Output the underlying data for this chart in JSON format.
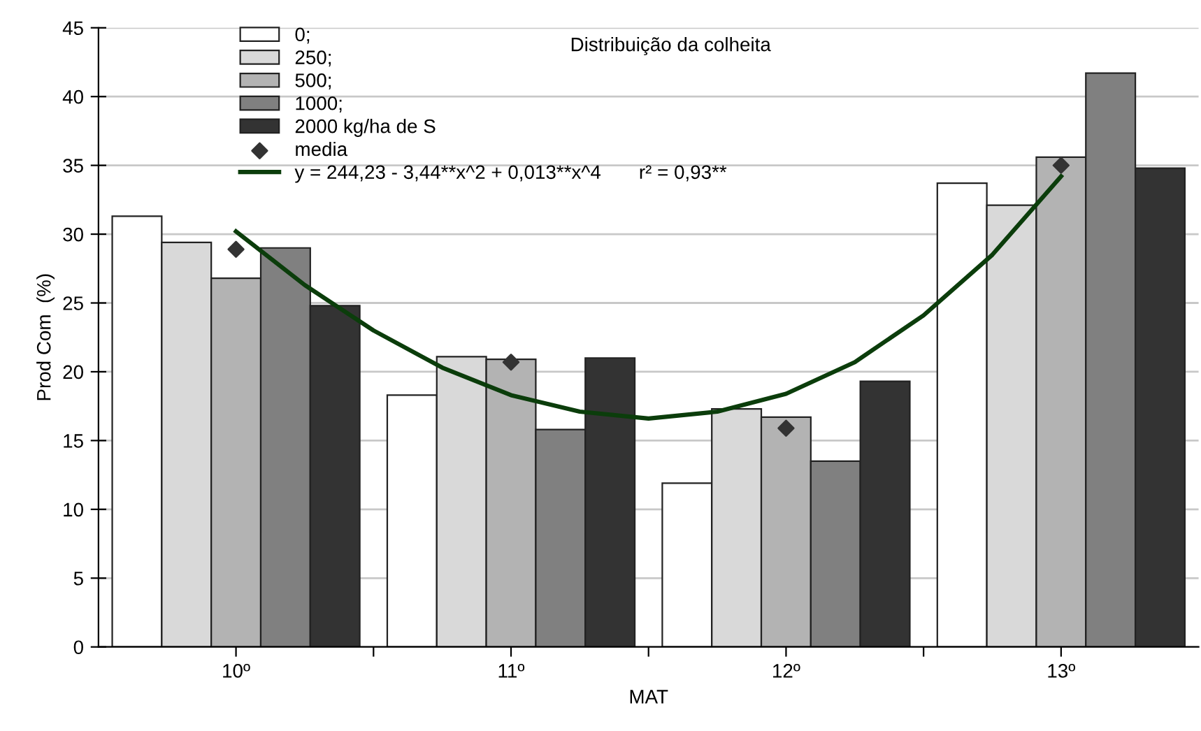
{
  "chart_data": {
    "type": "bar",
    "title": "Distribuição da colheita",
    "xlabel": "MAT",
    "ylabel": "Prod Com  (%)",
    "x": [
      10,
      11,
      12,
      13
    ],
    "xlim": [
      9.5,
      13.5
    ],
    "xticks": [
      {
        "value": 10,
        "label": "10º"
      },
      {
        "value": 10.5,
        "label": null
      },
      {
        "value": 11,
        "label": "11º"
      },
      {
        "value": 11.5,
        "label": null
      },
      {
        "value": 12,
        "label": "12º"
      },
      {
        "value": 12.5,
        "label": null
      },
      {
        "value": 13,
        "label": "13º"
      }
    ],
    "ylim": [
      0,
      45
    ],
    "yticks": [
      0,
      5,
      10,
      15,
      20,
      25,
      30,
      35,
      40,
      45
    ],
    "grid": "y",
    "legend": "top",
    "series": [
      {
        "name": "0;",
        "color": "#ffffff",
        "values": [
          31.3,
          18.3,
          11.9,
          33.7
        ]
      },
      {
        "name": "250;",
        "color": "#d9d9d9",
        "values": [
          29.4,
          21.1,
          17.3,
          32.1
        ]
      },
      {
        "name": "500;",
        "color": "#b3b3b3",
        "values": [
          26.8,
          20.9,
          16.7,
          35.6
        ]
      },
      {
        "name": "1000;",
        "color": "#808080",
        "values": [
          29.0,
          15.8,
          13.5,
          41.7
        ]
      },
      {
        "name": "2000 kg/ha de S",
        "color": "#333333",
        "values": [
          24.8,
          21.0,
          19.3,
          34.8
        ]
      },
      {
        "name": "media",
        "type": "scatter",
        "marker": "diamond",
        "color": "#333333",
        "values": [
          28.9,
          20.7,
          15.9,
          35.0
        ]
      },
      {
        "name": "y = 244,23 - 3,44**x^2 + 0,013**x^4       r² = 0,93**",
        "type": "line",
        "color": "#0b3d0b",
        "x": [
          10,
          10.25,
          10.5,
          10.75,
          11,
          11.25,
          11.5,
          11.75,
          12,
          12.25,
          12.5,
          12.75,
          13
        ],
        "values": [
          30.2,
          26.3,
          23.0,
          20.3,
          18.3,
          17.1,
          16.6,
          17.1,
          18.4,
          20.7,
          24.1,
          28.5,
          34.2
        ]
      }
    ]
  }
}
